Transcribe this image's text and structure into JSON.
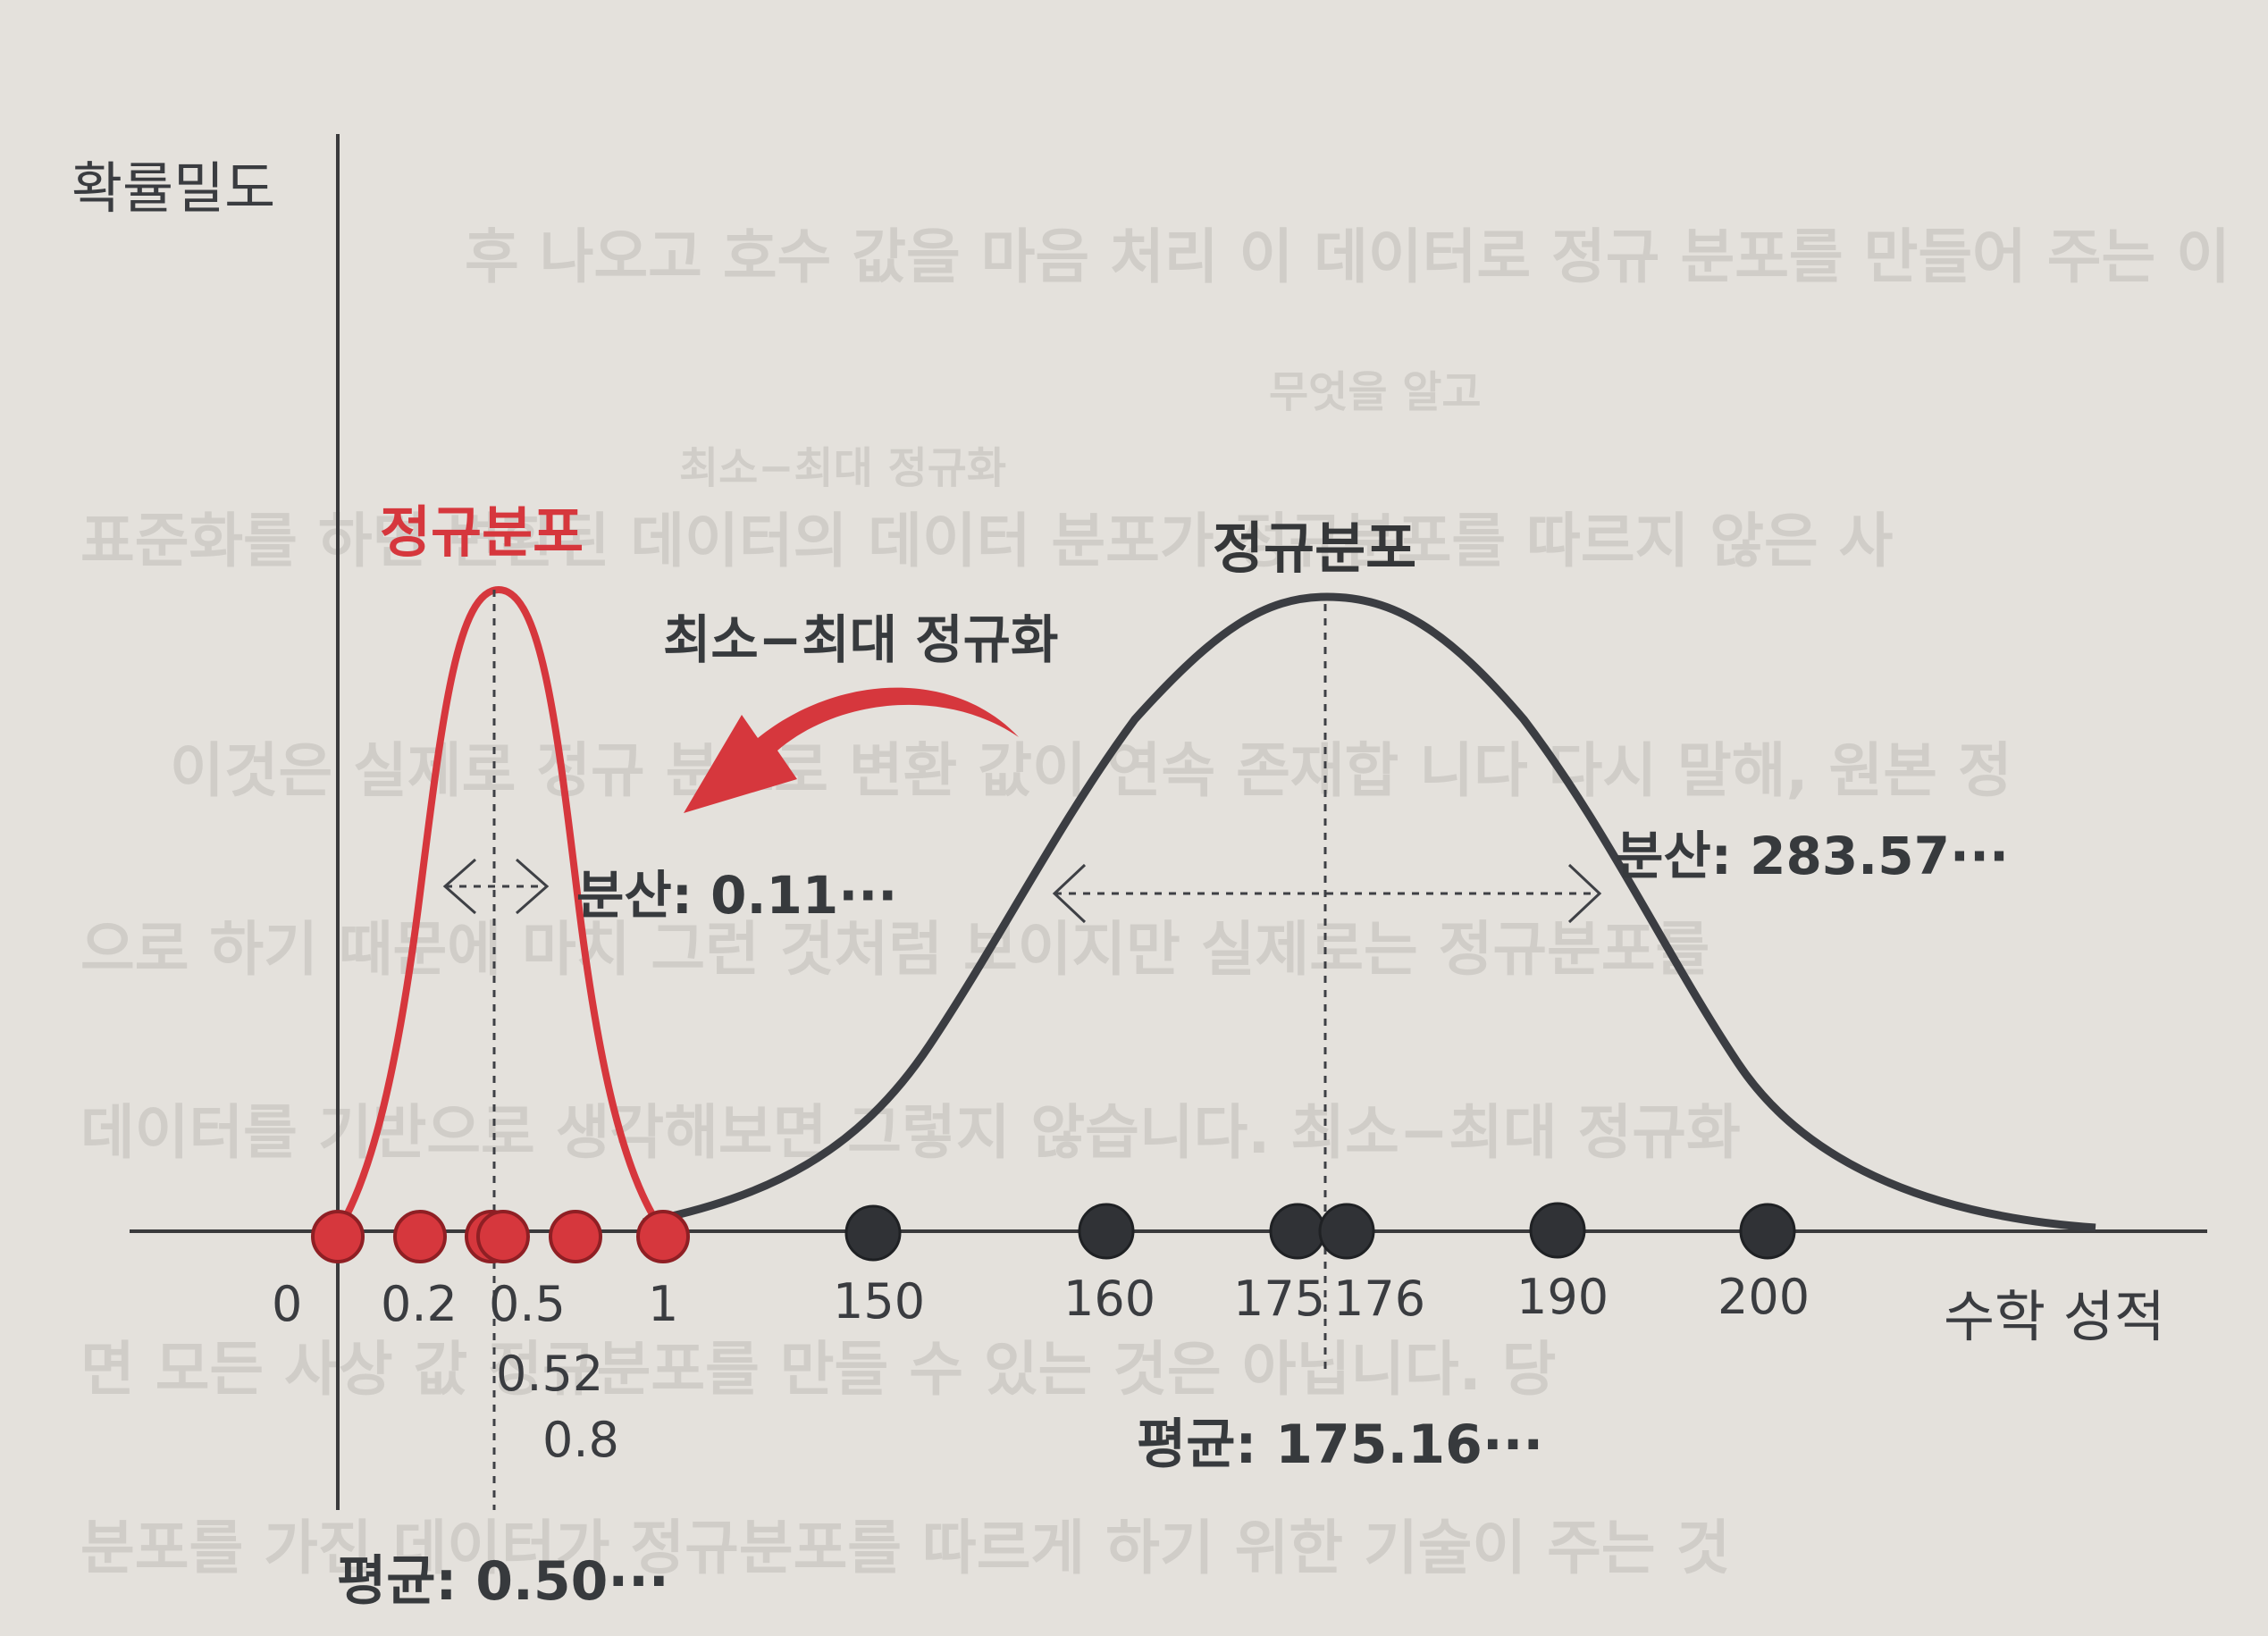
{
  "diagram": {
    "y_axis_label": "확률밀도",
    "x_axis_label": "수학 성적",
    "left_curve_title": "정규분포",
    "right_curve_title": "정규분포",
    "transform_label": "최소−최대 정규화",
    "left_variance_label": "분산: 0.11···",
    "right_variance_label": "분산: 283.57···",
    "left_mean_label": "평균: 0.50···",
    "right_mean_label": "평균: 175.16···",
    "left_ticks": {
      "tick_0": "0",
      "tick_02": "0.2",
      "tick_05": "0.5",
      "tick_052": "0.52",
      "tick_08": "0.8",
      "tick_1": "1"
    },
    "right_ticks": {
      "tick_150": "150",
      "tick_160": "160",
      "tick_175": "175",
      "tick_176": "176",
      "tick_190": "190",
      "tick_200": "200"
    }
  },
  "colors": {
    "red_curve": "#d6373d",
    "black_curve": "#3b3d42"
  },
  "background_text": {
    "line1": "후 나오고 호수 값을 마음 처리 이 데이터로 정규 분포를 만들어 주는 이",
    "line2": "무엇을 알고",
    "line3": "최소−최대 정규화",
    "line4": "표준화를 하면 변환된 데이터의 데이터 분포가 정규분포를 따르지 않은 사",
    "line5": "이것은 실제로 정규 분포로 변환 값이 연속 존재합 니다 다시 말해, 원본 정",
    "line6": "으로 하기 때문에 마치 그런 것처럼 보이지만 실제로는 정규분포를",
    "line7": "데이터를 기반으로 생각해보면 그렇지 않습니다. 최소−최대 정규화",
    "line8": "면 모든 사상 값 정규분포를 만들 수 있는 것은 아닙니다. 당",
    "line9": "분포를 가진 데이터가 정규분포를 따르게 하기 위한 기술이 주는 것"
  }
}
